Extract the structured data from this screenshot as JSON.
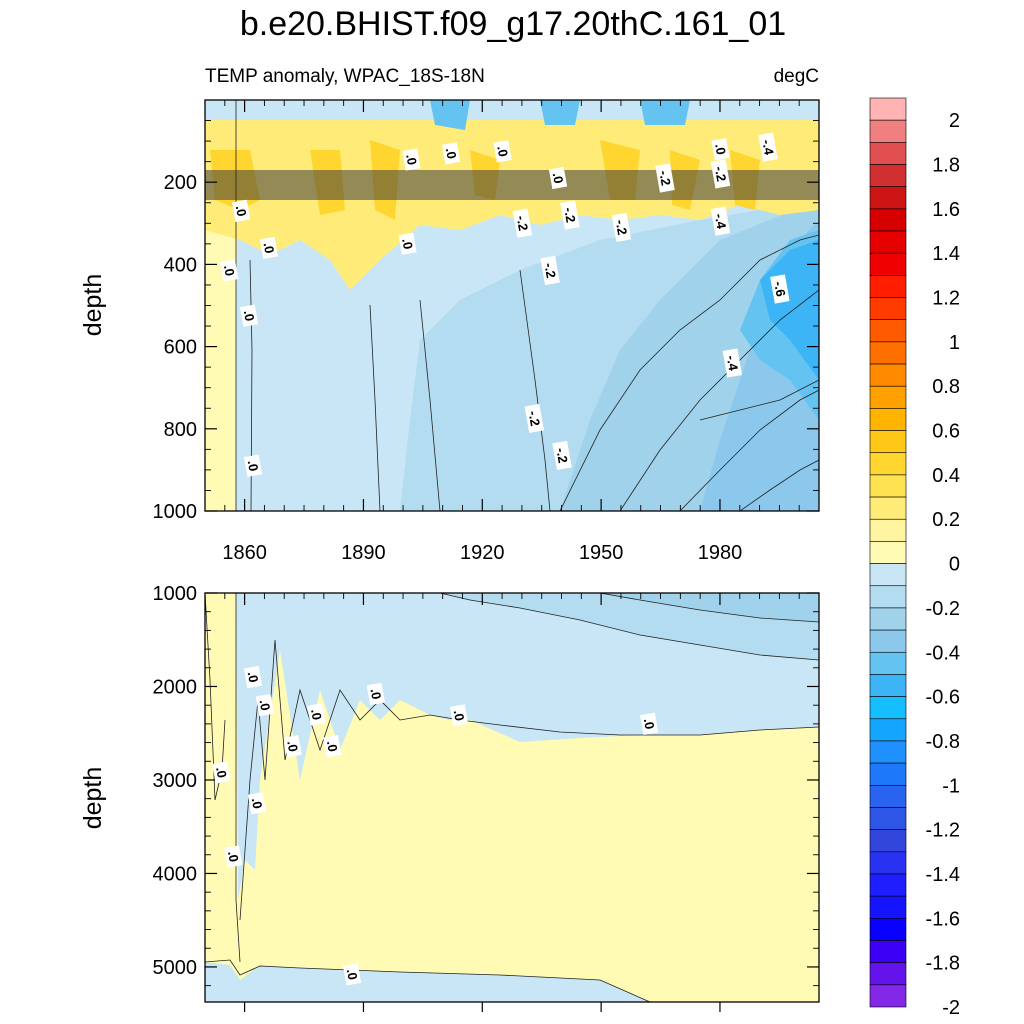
{
  "chart_data": [
    {
      "type": "heatmap",
      "panel": "upper",
      "title": "b.e20.BHIST.f09_g17.20thC.161_01",
      "subtitle_left": "TEMP anomaly, WPAC_18S-18N",
      "subtitle_right": "degC",
      "xlabel": "",
      "ylabel": "depth",
      "xlim": [
        1850,
        2005
      ],
      "ylim": [
        1000,
        0
      ],
      "x_ticks": [
        1860,
        1890,
        1920,
        1950,
        1980
      ],
      "x_tick_labels": [
        "1860",
        "1890",
        "1920",
        "1950",
        "1980"
      ],
      "y_ticks": [
        200,
        400,
        600,
        800,
        1000
      ],
      "y_tick_labels": [
        "200",
        "400",
        "600",
        "800",
        "1000"
      ],
      "contour_labels": [
        {
          "x": 1859,
          "y": 270,
          "text": ".0"
        },
        {
          "x": 1856,
          "y": 415,
          "text": ".0"
        },
        {
          "x": 1866,
          "y": 360,
          "text": ".0"
        },
        {
          "x": 1861,
          "y": 525,
          "text": ".0"
        },
        {
          "x": 1862,
          "y": 890,
          "text": ".0"
        },
        {
          "x": 1902,
          "y": 145,
          "text": ".0"
        },
        {
          "x": 1912,
          "y": 130,
          "text": ".0"
        },
        {
          "x": 1925,
          "y": 125,
          "text": ".0"
        },
        {
          "x": 1901,
          "y": 350,
          "text": ".0"
        },
        {
          "x": 1939,
          "y": 190,
          "text": ".0"
        },
        {
          "x": 1942,
          "y": 280,
          "text": "-.2"
        },
        {
          "x": 1930,
          "y": 300,
          "text": "-.2"
        },
        {
          "x": 1955,
          "y": 310,
          "text": "-.2"
        },
        {
          "x": 1937,
          "y": 415,
          "text": "-.2"
        },
        {
          "x": 1933,
          "y": 775,
          "text": "-.2"
        },
        {
          "x": 1940,
          "y": 865,
          "text": "-.2"
        },
        {
          "x": 1966,
          "y": 190,
          "text": "-.2"
        },
        {
          "x": 1980,
          "y": 120,
          "text": ".0"
        },
        {
          "x": 1980,
          "y": 180,
          "text": "-.2"
        },
        {
          "x": 1980,
          "y": 295,
          "text": "-.4"
        },
        {
          "x": 1992,
          "y": 115,
          "text": "-.4"
        },
        {
          "x": 1995,
          "y": 460,
          "text": "-.6"
        },
        {
          "x": 1983,
          "y": 640,
          "text": "-.4"
        }
      ]
    },
    {
      "type": "heatmap",
      "panel": "lower",
      "xlabel": "",
      "ylabel": "depth",
      "xlim": [
        1850,
        2005
      ],
      "ylim": [
        5375,
        1000
      ],
      "y_ticks": [
        1000,
        2000,
        3000,
        4000,
        5000
      ],
      "y_tick_labels": [
        "1000",
        "2000",
        "3000",
        "4000",
        "5000"
      ],
      "contour_labels": [
        {
          "x": 1862,
          "y": 1900,
          "text": ".0"
        },
        {
          "x": 1865,
          "y": 2200,
          "text": ".0"
        },
        {
          "x": 1854,
          "y": 2920,
          "text": ".0"
        },
        {
          "x": 1863,
          "y": 3250,
          "text": ".0"
        },
        {
          "x": 1857,
          "y": 3820,
          "text": ".0"
        },
        {
          "x": 1872,
          "y": 2640,
          "text": ".0"
        },
        {
          "x": 1878,
          "y": 2300,
          "text": ".0"
        },
        {
          "x": 1882,
          "y": 2640,
          "text": ".0"
        },
        {
          "x": 1893,
          "y": 2080,
          "text": ".0"
        },
        {
          "x": 1914,
          "y": 2310,
          "text": ".0"
        },
        {
          "x": 1962,
          "y": 2400,
          "text": ".0"
        },
        {
          "x": 1887,
          "y": 5080,
          "text": ".0"
        }
      ]
    }
  ],
  "colorbar": {
    "tick_labels": [
      "2",
      "1.8",
      "1.6",
      "1.4",
      "1.2",
      "1",
      "0.8",
      "0.6",
      "0.4",
      "0.2",
      "0",
      "-0.2",
      "-0.4",
      "-0.6",
      "-0.8",
      "-1",
      "-1.2",
      "-1.4",
      "-1.6",
      "-1.8",
      "-2"
    ],
    "colors": [
      "#FFB3B3",
      "#F08080",
      "#E05050",
      "#D23030",
      "#CC1414",
      "#D70000",
      "#E60000",
      "#F00000",
      "#FF1E00",
      "#FF3C00",
      "#FF5A00",
      "#FF7000",
      "#FF8A00",
      "#FFA000",
      "#FFB400",
      "#FFC818",
      "#FFD530",
      "#FFE250",
      "#FFEB78",
      "#FFF5A0",
      "#FFFAB4",
      "#C8E6F5",
      "#B4DCF0",
      "#A0D2EB",
      "#8CC8EB",
      "#64C3F0",
      "#3CB4F5",
      "#14BEFF",
      "#14A5FF",
      "#1E91FF",
      "#1E78FA",
      "#2864F0",
      "#2D55E6",
      "#3246DC",
      "#2832F0",
      "#1E1EFF",
      "#1414FF",
      "#0A00FF",
      "#3C00F5",
      "#6414EB",
      "#8228E6"
    ]
  },
  "colors": {
    "fill_zero": "#FFFAB4",
    "fill_neg02": "#C8E6F5",
    "fill_neg04": "#A0D2EB",
    "fill_neg06": "#8CC8EB",
    "fill_neg08": "#64C3F0",
    "fill_neg10": "#14BEFF"
  }
}
